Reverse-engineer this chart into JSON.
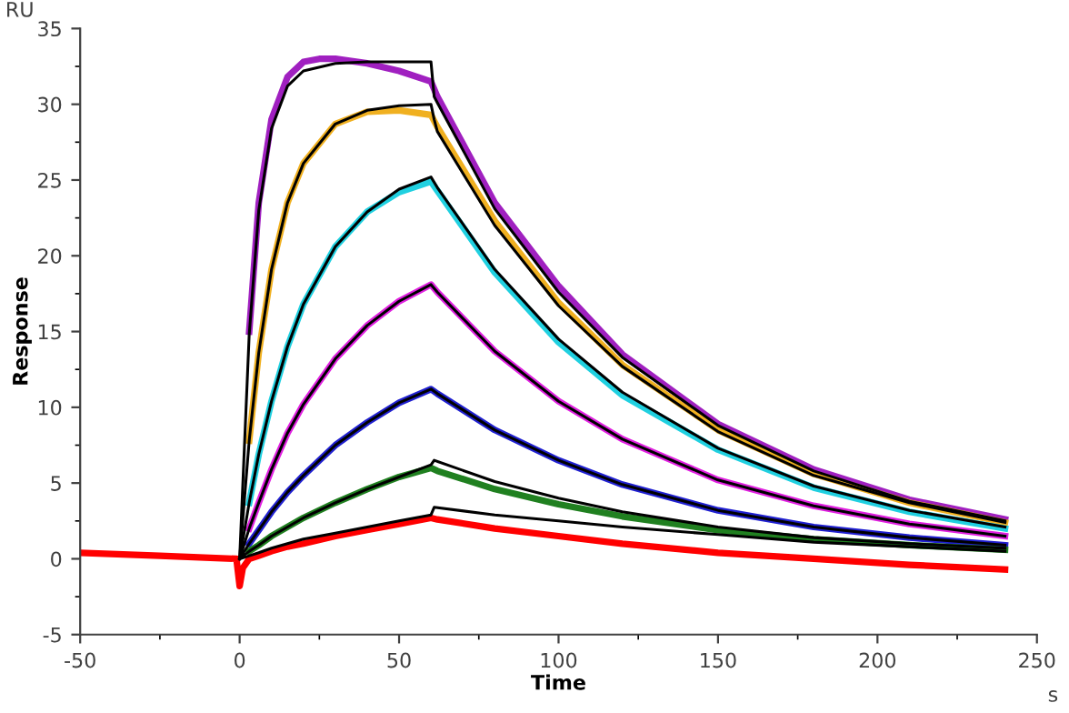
{
  "chart_data": {
    "type": "line",
    "xlabel": "Time",
    "ylabel": "Response",
    "annotations": [
      "RU",
      "s"
    ],
    "xlim": [
      -50,
      250
    ],
    "ylim": [
      -5,
      35
    ],
    "xticks": [
      -50,
      0,
      50,
      100,
      150,
      200,
      250
    ],
    "yticks": [
      -5,
      0,
      5,
      10,
      15,
      20,
      25,
      30,
      35
    ],
    "grid": false,
    "legend": false,
    "marker": "none",
    "line_style": "solid",
    "series": [
      {
        "color": "#a020c0",
        "x": [
          3,
          6,
          10,
          15,
          20,
          25,
          30,
          40,
          50,
          60,
          62,
          80,
          100,
          120,
          150,
          180,
          210,
          240
        ],
        "values": [
          15,
          23.5,
          29,
          31.8,
          32.8,
          33,
          33,
          32.7,
          32.2,
          31.5,
          30.5,
          23.5,
          18,
          13.5,
          8.9,
          5.9,
          3.9,
          2.6
        ]
      },
      {
        "color": "#f0b020",
        "x": [
          3,
          6,
          10,
          15,
          20,
          30,
          40,
          50,
          60,
          62,
          80,
          100,
          120,
          150,
          180,
          210,
          240
        ],
        "values": [
          7.8,
          13.6,
          19.1,
          23.5,
          26.1,
          28.7,
          29.5,
          29.6,
          29.3,
          28.5,
          22.3,
          16.9,
          12.8,
          8.5,
          5.6,
          3.7,
          2.4
        ]
      },
      {
        "color": "#20d0e0",
        "x": [
          3,
          6,
          10,
          15,
          20,
          30,
          40,
          50,
          60,
          62,
          80,
          100,
          120,
          150,
          180,
          210,
          240
        ],
        "values": [
          3.7,
          6.9,
          10.4,
          14,
          16.8,
          20.6,
          22.9,
          24.2,
          24.9,
          24.3,
          18.9,
          14.3,
          10.8,
          7.2,
          4.7,
          3.1,
          2.0
        ]
      },
      {
        "color": "#e020e0",
        "x": [
          3,
          6,
          10,
          15,
          20,
          30,
          40,
          50,
          60,
          62,
          80,
          100,
          120,
          150,
          180,
          210,
          240
        ],
        "values": [
          2,
          3.7,
          5.9,
          8.3,
          10.2,
          13.2,
          15.4,
          17,
          18.1,
          17.6,
          13.7,
          10.4,
          7.9,
          5.2,
          3.5,
          2.3,
          1.5
        ]
      },
      {
        "color": "#2020d0",
        "x": [
          3,
          6,
          10,
          15,
          20,
          30,
          40,
          50,
          60,
          62,
          80,
          100,
          120,
          150,
          180,
          210,
          240
        ],
        "values": [
          1,
          1.9,
          3.1,
          4.4,
          5.5,
          7.5,
          9,
          10.3,
          11.2,
          10.9,
          8.5,
          6.5,
          4.9,
          3.2,
          2.1,
          1.4,
          0.9
        ]
      },
      {
        "color": "#208020",
        "x": [
          3,
          6,
          10,
          15,
          20,
          30,
          40,
          50,
          60,
          62,
          80,
          100,
          120,
          150,
          180,
          210,
          240
        ],
        "values": [
          0.5,
          0.9,
          1.5,
          2.1,
          2.7,
          3.7,
          4.6,
          5.4,
          6,
          5.8,
          4.6,
          3.6,
          2.8,
          1.9,
          1.3,
          0.9,
          0.6
        ]
      },
      {
        "color": "#ff0000",
        "x": [
          -50,
          -25,
          -1,
          0,
          1,
          3,
          6,
          10,
          15,
          20,
          30,
          40,
          50,
          60,
          62,
          80,
          100,
          120,
          150,
          180,
          210,
          240
        ],
        "values": [
          0.4,
          0.2,
          0,
          -1.8,
          -0.6,
          0,
          0.2,
          0.5,
          0.8,
          1,
          1.5,
          1.9,
          2.3,
          2.7,
          2.6,
          2,
          1.5,
          1,
          0.4,
          0,
          -0.4,
          -0.7
        ]
      },
      {
        "color": "#000000",
        "x": [
          0,
          3,
          6,
          10,
          15,
          20,
          30,
          40,
          50,
          60,
          61,
          62,
          80,
          100,
          120,
          150,
          180,
          210,
          240
        ],
        "values": [
          0,
          14.8,
          23,
          28.4,
          31.2,
          32.2,
          32.7,
          32.8,
          32.8,
          32.8,
          30.5,
          30.1,
          23.1,
          17.6,
          13.3,
          8.8,
          5.8,
          3.8,
          2.5
        ]
      },
      {
        "color": "#000000",
        "x": [
          0,
          3,
          6,
          10,
          15,
          20,
          30,
          40,
          50,
          60,
          61,
          62,
          80,
          100,
          120,
          150,
          180,
          210,
          240
        ],
        "values": [
          0,
          7.8,
          13.6,
          19.1,
          23.5,
          26.1,
          28.7,
          29.6,
          29.9,
          30,
          29,
          28.2,
          22,
          16.7,
          12.7,
          8.4,
          5.5,
          3.7,
          2.4
        ]
      },
      {
        "color": "#000000",
        "x": [
          0,
          3,
          6,
          10,
          15,
          20,
          30,
          40,
          50,
          60,
          62,
          80,
          100,
          120,
          150,
          180,
          210,
          240
        ],
        "values": [
          0,
          3.7,
          6.9,
          10.4,
          14,
          16.8,
          20.6,
          22.9,
          24.4,
          25.2,
          24.5,
          19.1,
          14.5,
          11,
          7.3,
          4.8,
          3.2,
          2.1
        ]
      },
      {
        "color": "#000000",
        "x": [
          0,
          3,
          6,
          10,
          15,
          20,
          30,
          40,
          50,
          60,
          62,
          80,
          100,
          120,
          150,
          180,
          210,
          240
        ],
        "values": [
          0,
          2,
          3.7,
          5.9,
          8.3,
          10.2,
          13.2,
          15.4,
          17,
          18.1,
          17.6,
          13.7,
          10.4,
          7.9,
          5.2,
          3.5,
          2.3,
          1.5
        ]
      },
      {
        "color": "#000000",
        "x": [
          0,
          3,
          6,
          10,
          15,
          20,
          30,
          40,
          50,
          60,
          62,
          80,
          100,
          120,
          150,
          180,
          210,
          240
        ],
        "values": [
          0,
          1,
          1.9,
          3.1,
          4.4,
          5.5,
          7.5,
          9,
          10.3,
          11.2,
          10.9,
          8.5,
          6.5,
          4.9,
          3.2,
          2.1,
          1.4,
          0.9
        ]
      },
      {
        "color": "#000000",
        "x": [
          0,
          3,
          6,
          10,
          15,
          20,
          30,
          40,
          50,
          60,
          61,
          80,
          100,
          120,
          150,
          180,
          210,
          240
        ],
        "values": [
          0,
          0.5,
          0.9,
          1.5,
          2.1,
          2.7,
          3.7,
          4.6,
          5.4,
          6.2,
          6.5,
          5.1,
          4.0,
          3.1,
          2.1,
          1.4,
          1.0,
          0.7
        ]
      },
      {
        "color": "#000000",
        "x": [
          0,
          3,
          6,
          10,
          15,
          20,
          30,
          40,
          50,
          60,
          61,
          80,
          100,
          120,
          150,
          180,
          210,
          240
        ],
        "values": [
          0,
          0.2,
          0.4,
          0.7,
          1,
          1.3,
          1.7,
          2.1,
          2.5,
          2.9,
          3.4,
          2.9,
          2.5,
          2.1,
          1.6,
          1.1,
          0.8,
          0.5
        ]
      }
    ]
  }
}
